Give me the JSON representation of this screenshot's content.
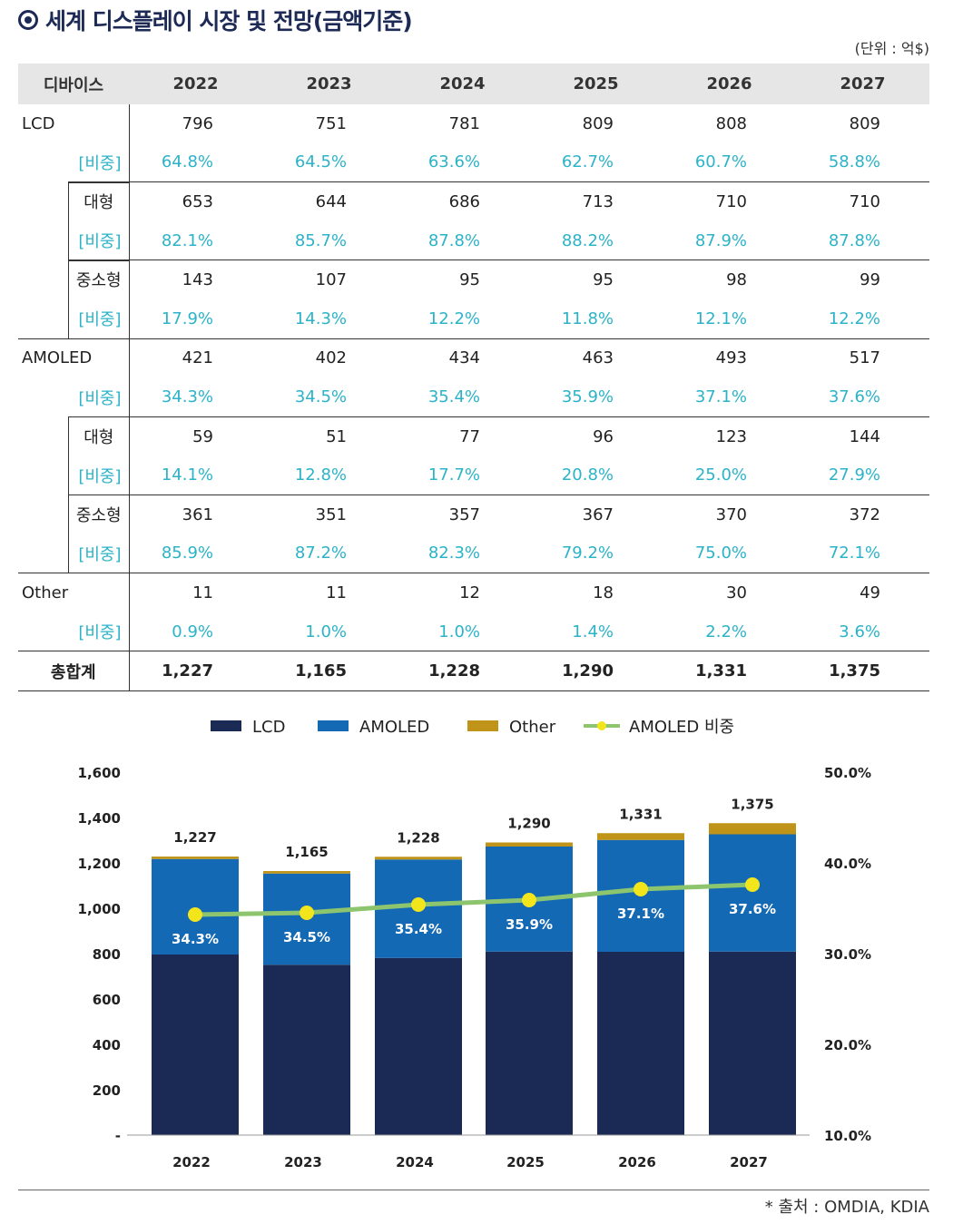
{
  "title": "세계 디스플레이 시장 및 전망(금액기준)",
  "unit": "(단위 : 억$)",
  "table": {
    "headers": [
      "디바이스",
      "2022",
      "2023",
      "2024",
      "2025",
      "2026",
      "2027"
    ],
    "share_label": "[비중]",
    "groups": [
      {
        "label": "LCD",
        "level": 0,
        "values": [
          "796",
          "751",
          "781",
          "809",
          "808",
          "809"
        ],
        "shares": [
          "64.8%",
          "64.5%",
          "63.6%",
          "62.7%",
          "60.7%",
          "58.8%"
        ]
      },
      {
        "label": "대형",
        "level": 1,
        "values": [
          "653",
          "644",
          "686",
          "713",
          "710",
          "710"
        ],
        "shares": [
          "82.1%",
          "85.7%",
          "87.8%",
          "88.2%",
          "87.9%",
          "87.8%"
        ]
      },
      {
        "label": "중소형",
        "level": 1,
        "values": [
          "143",
          "107",
          "95",
          "95",
          "98",
          "99"
        ],
        "shares": [
          "17.9%",
          "14.3%",
          "12.2%",
          "11.8%",
          "12.1%",
          "12.2%"
        ]
      },
      {
        "label": "AMOLED",
        "level": 0,
        "values": [
          "421",
          "402",
          "434",
          "463",
          "493",
          "517"
        ],
        "shares": [
          "34.3%",
          "34.5%",
          "35.4%",
          "35.9%",
          "37.1%",
          "37.6%"
        ]
      },
      {
        "label": "대형",
        "level": 1,
        "values": [
          "59",
          "51",
          "77",
          "96",
          "123",
          "144"
        ],
        "shares": [
          "14.1%",
          "12.8%",
          "17.7%",
          "20.8%",
          "25.0%",
          "27.9%"
        ]
      },
      {
        "label": "중소형",
        "level": 1,
        "values": [
          "361",
          "351",
          "357",
          "367",
          "370",
          "372"
        ],
        "shares": [
          "85.9%",
          "87.2%",
          "82.3%",
          "79.2%",
          "75.0%",
          "72.1%"
        ]
      },
      {
        "label": "Other",
        "level": 0,
        "values": [
          "11",
          "11",
          "12",
          "18",
          "30",
          "49"
        ],
        "shares": [
          "0.9%",
          "1.0%",
          "1.0%",
          "1.4%",
          "2.2%",
          "3.6%"
        ]
      }
    ],
    "total": {
      "label": "총합계",
      "values": [
        "1,227",
        "1,165",
        "1,228",
        "1,290",
        "1,331",
        "1,375"
      ]
    }
  },
  "chart_data": {
    "type": "bar",
    "stacked": true,
    "categories": [
      "2022",
      "2023",
      "2024",
      "2025",
      "2026",
      "2027"
    ],
    "series": [
      {
        "name": "LCD",
        "values": [
          796,
          751,
          781,
          809,
          808,
          809
        ],
        "color": "#1b2a55"
      },
      {
        "name": "AMOLED",
        "values": [
          421,
          402,
          434,
          463,
          493,
          517
        ],
        "color": "#1469b4"
      },
      {
        "name": "Other",
        "values": [
          11,
          11,
          12,
          18,
          30,
          49
        ],
        "color": "#c09418"
      },
      {
        "name": "AMOLED 비중",
        "type": "line",
        "axis": "right",
        "values": [
          34.3,
          34.5,
          35.4,
          35.9,
          37.1,
          37.6
        ],
        "labels": [
          "34.3%",
          "34.5%",
          "35.4%",
          "35.9%",
          "37.1%",
          "37.6%"
        ],
        "color": "#8cc56e",
        "marker_color": "#f2e51c"
      }
    ],
    "total_labels": [
      "1,227",
      "1,165",
      "1,228",
      "1,290",
      "1,331",
      "1,375"
    ],
    "ylim": [
      0,
      1600
    ],
    "yticks": [
      "-",
      "200",
      "400",
      "600",
      "800",
      "1,000",
      "1,200",
      "1,400",
      "1,600"
    ],
    "y2lim": [
      10,
      50
    ],
    "y2ticks": [
      "10.0%",
      "20.0%",
      "30.0%",
      "40.0%",
      "50.0%"
    ],
    "legend": "top",
    "grid": false
  },
  "source": "* 출처 : OMDIA, KDIA"
}
